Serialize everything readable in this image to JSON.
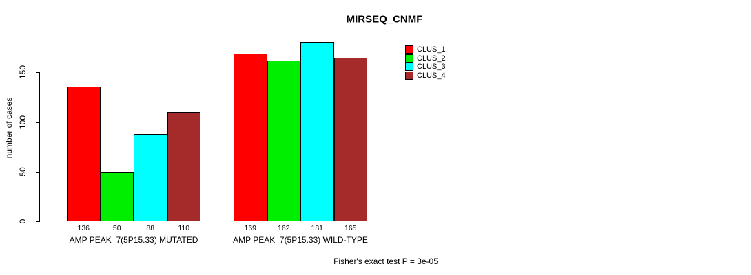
{
  "chart_data": {
    "type": "bar",
    "title": "MIRSEQ_CNMF",
    "ylabel": "number of cases",
    "yticks": [
      0,
      50,
      100,
      150
    ],
    "ylim": [
      0,
      150
    ],
    "grid": false,
    "legend_position": "right",
    "categories": [
      "AMP PEAK  7(5P15.33) MUTATED",
      "AMP PEAK  7(5P15.33) WILD-TYPE"
    ],
    "series": [
      {
        "name": "CLUS_1",
        "color": "#FF0000",
        "values": [
          136,
          169
        ]
      },
      {
        "name": "CLUS_2",
        "color": "#00EE00",
        "values": [
          50,
          162
        ]
      },
      {
        "name": "CLUS_3",
        "color": "#00FFFF",
        "values": [
          88,
          181
        ]
      },
      {
        "name": "CLUS_4",
        "color": "#A52A2A",
        "values": [
          110,
          165
        ]
      }
    ],
    "annotation": "Fisher's exact test P = 3e-05"
  }
}
